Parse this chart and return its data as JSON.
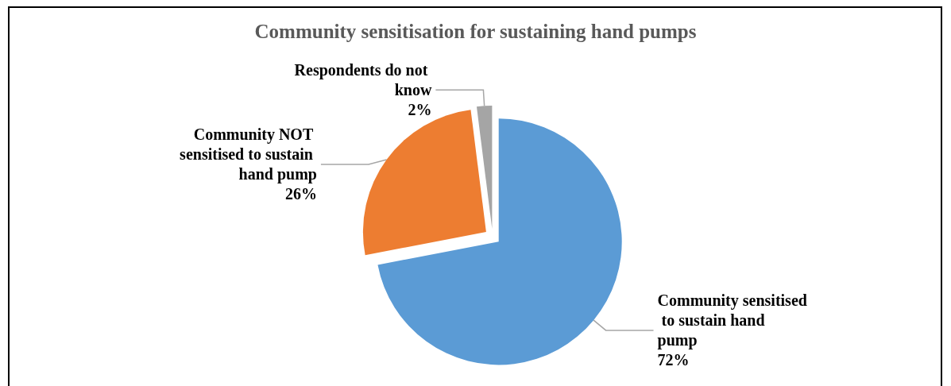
{
  "chart_data": {
    "type": "pie",
    "title": "Community sensitisation for sustaining hand pumps",
    "categories": [
      "Community sensitised to sustain hand pump",
      "Community NOT sensitised to sustain hand pump",
      "Respondents do not know"
    ],
    "values": [
      72,
      26,
      2
    ],
    "value_labels": [
      "72%",
      "26%",
      "2%"
    ],
    "colors": [
      "#5b9bd5",
      "#ed7d31",
      "#a5a5a5"
    ],
    "legend": false
  }
}
